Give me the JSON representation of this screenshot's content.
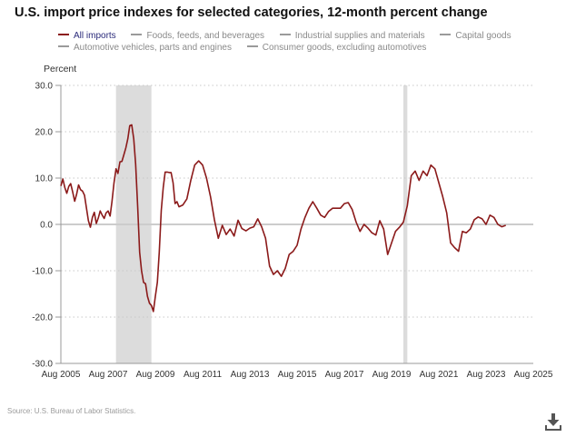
{
  "chart_data": {
    "type": "line",
    "title": "U.S. import price indexes for selected categories, 12-month percent change",
    "ylabel": "Percent",
    "xlabel": "",
    "ylim": [
      -30,
      30
    ],
    "y_ticks": [
      "30.0",
      "20.0",
      "10.0",
      "0.0",
      "-10.0",
      "-20.0",
      "-30.0"
    ],
    "y_tick_values": [
      30,
      20,
      10,
      0,
      -10,
      -20,
      -30
    ],
    "x_ticks": [
      "Aug 2005",
      "Aug 2007",
      "Aug 2009",
      "Aug 2011",
      "Aug 2013",
      "Aug 2015",
      "Aug 2017",
      "Aug 2019",
      "Aug 2021",
      "Aug 2023",
      "Aug 2025"
    ],
    "x_range_months": [
      0,
      240
    ],
    "grid": "horizontal-dotted",
    "legend_placement": "top",
    "legend": [
      {
        "label": "All imports",
        "color": "#8b1a1a",
        "active": true
      },
      {
        "label": "Foods, feeds, and beverages",
        "color": "#9a9a9a",
        "active": false
      },
      {
        "label": "Industrial supplies and materials",
        "color": "#9a9a9a",
        "active": false
      },
      {
        "label": "Capital goods",
        "color": "#9a9a9a",
        "active": false
      },
      {
        "label": "Automotive vehicles, parts and engines",
        "color": "#9a9a9a",
        "active": false
      },
      {
        "label": "Consumer goods, excluding automotives",
        "color": "#9a9a9a",
        "active": false
      }
    ],
    "recessions": [
      {
        "label": "Dec 2007 - Jun 2009",
        "start_month": 28,
        "end_month": 46
      },
      {
        "label": "Feb 2020 - Apr 2020",
        "start_month": 174,
        "end_month": 176
      }
    ],
    "series": [
      {
        "name": "All imports",
        "color": "#8b1a1a",
        "x_months": [
          0,
          1,
          2,
          3,
          4,
          5,
          6,
          7,
          8,
          9,
          10,
          11,
          12,
          13,
          14,
          15,
          16,
          17,
          18,
          19,
          20,
          21,
          22,
          23,
          24,
          25,
          26,
          27,
          28,
          29,
          30,
          31,
          32,
          33,
          34,
          35,
          36,
          37,
          38,
          39,
          40,
          41,
          42,
          43,
          44,
          45,
          46,
          47,
          48,
          49,
          50,
          51,
          52,
          53,
          54,
          55,
          56,
          57,
          58,
          59,
          60,
          62,
          64,
          66,
          68,
          70,
          72,
          74,
          76,
          78,
          80,
          82,
          84,
          86,
          88,
          90,
          92,
          94,
          96,
          98,
          100,
          102,
          104,
          106,
          108,
          110,
          112,
          114,
          116,
          118,
          120,
          122,
          124,
          126,
          128,
          130,
          132,
          134,
          136,
          138,
          140,
          142,
          144,
          146,
          148,
          150,
          152,
          154,
          156,
          158,
          160,
          162,
          164,
          166,
          168,
          170,
          172,
          174,
          176,
          178,
          180,
          182,
          184,
          186,
          188,
          190,
          192,
          194,
          196,
          198,
          200,
          202,
          204,
          206,
          208,
          210,
          212,
          214,
          216,
          218,
          220,
          222,
          224,
          226,
          228,
          230,
          232,
          234,
          236,
          238,
          240
        ],
        "values": [
          8.3,
          9.8,
          8.0,
          6.7,
          8.2,
          8.8,
          7.0,
          5.0,
          6.5,
          8.5,
          7.5,
          7.2,
          6.3,
          3.5,
          0.8,
          -0.6,
          1.5,
          2.6,
          0.2,
          1.4,
          2.9,
          2.0,
          1.3,
          2.5,
          2.9,
          1.8,
          5.0,
          9.0,
          12.0,
          11.0,
          13.5,
          13.6,
          15.0,
          16.5,
          18.5,
          21.3,
          21.5,
          18.5,
          13.0,
          4.0,
          -6.0,
          -10.0,
          -12.5,
          -12.8,
          -15.5,
          -17.0,
          -17.5,
          -18.8,
          -15.5,
          -12.5,
          -6.0,
          3.0,
          8.0,
          11.3,
          11.3,
          11.2,
          11.2,
          9.0,
          4.5,
          4.9,
          3.8,
          4.2,
          5.5,
          9.5,
          12.8,
          13.7,
          12.8,
          10.0,
          6.0,
          1.0,
          -3.0,
          -0.2,
          -2.2,
          -1.0,
          -2.5,
          0.9,
          -0.9,
          -1.4,
          -0.8,
          -0.5,
          1.2,
          -0.5,
          -3.0,
          -9.0,
          -10.8,
          -10.0,
          -11.2,
          -9.5,
          -6.5,
          -5.8,
          -4.5,
          -1.0,
          1.5,
          3.5,
          4.9,
          3.5,
          2.0,
          1.5,
          2.8,
          3.5,
          3.5,
          3.5,
          4.5,
          4.7,
          3.2,
          0.5,
          -1.5,
          0.0,
          -0.8,
          -1.8,
          -2.3,
          0.8,
          -1.0,
          -6.5,
          -4.0,
          -1.5,
          -0.6,
          0.5,
          4.0,
          10.5,
          11.5,
          9.5,
          11.5,
          10.5,
          12.8,
          12.0,
          9.0,
          6.0,
          2.5,
          -4.0,
          -5.0,
          -5.8,
          -1.5,
          -1.8,
          -1.0,
          1.0,
          1.6,
          1.2,
          0.0,
          2.0,
          1.5,
          0.0,
          -0.5,
          -0.2
        ]
      }
    ]
  },
  "page": {
    "title": "U.S. import price indexes for selected categories, 12-month percent change",
    "y_axis_title": "Percent",
    "source": "Source: U.S. Bureau of Labor Statistics.",
    "download_icon": "download-icon"
  }
}
